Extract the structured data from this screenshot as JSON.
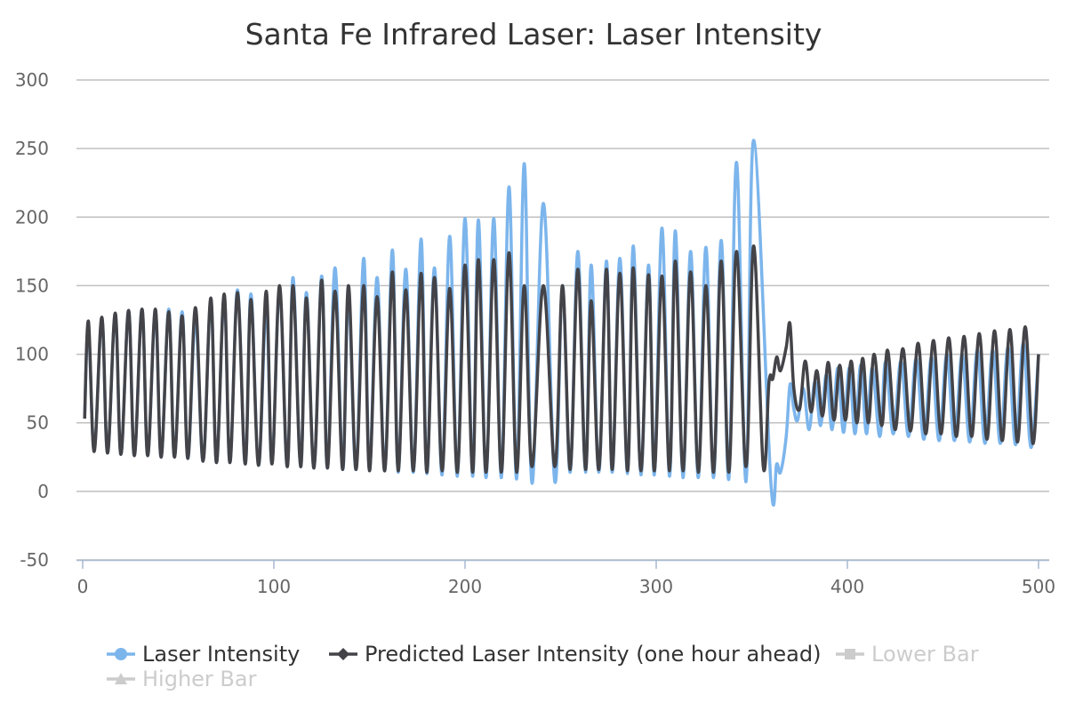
{
  "chart_data": {
    "type": "line",
    "title": "Santa Fe Infrared Laser: Laser Intensity",
    "xlabel": "",
    "ylabel": "",
    "xlim": [
      0,
      500
    ],
    "ylim": [
      -50,
      300
    ],
    "x_ticks": [
      0,
      100,
      200,
      300,
      400,
      500
    ],
    "y_ticks": [
      -50,
      0,
      50,
      100,
      150,
      200,
      250,
      300
    ],
    "grid": "horizontal",
    "legend_position": "bottom-left",
    "series": [
      {
        "name": "Laser Intensity",
        "color": "#7cb5ec",
        "marker": "circle",
        "active": true,
        "peaks": [
          [
            3,
            120
          ],
          [
            10,
            126
          ],
          [
            17,
            129
          ],
          [
            24,
            132
          ],
          [
            31,
            133
          ],
          [
            38,
            131
          ],
          [
            45,
            133
          ],
          [
            52,
            131
          ],
          [
            59,
            126
          ],
          [
            67,
            139
          ],
          [
            74,
            142
          ],
          [
            81,
            147
          ],
          [
            88,
            144
          ],
          [
            96,
            135
          ],
          [
            103,
            148
          ],
          [
            110,
            156
          ],
          [
            117,
            145
          ],
          [
            125,
            157
          ],
          [
            132,
            163
          ],
          [
            139,
            142
          ],
          [
            147,
            170
          ],
          [
            154,
            156
          ],
          [
            162,
            176
          ],
          [
            169,
            162
          ],
          [
            177,
            184
          ],
          [
            184,
            163
          ],
          [
            192,
            186
          ],
          [
            200,
            199
          ],
          [
            207,
            198
          ],
          [
            215,
            199
          ],
          [
            223,
            222
          ],
          [
            231,
            239
          ],
          [
            241,
            210
          ],
          [
            251,
            150
          ],
          [
            259,
            175
          ],
          [
            266,
            165
          ],
          [
            274,
            168
          ],
          [
            281,
            170
          ],
          [
            288,
            179
          ],
          [
            296,
            165
          ],
          [
            303,
            192
          ],
          [
            310,
            190
          ],
          [
            318,
            175
          ],
          [
            326,
            178
          ],
          [
            334,
            183
          ],
          [
            342,
            240
          ],
          [
            351,
            256
          ]
        ],
        "troughs": [
          [
            1,
            55
          ],
          [
            6,
            30
          ],
          [
            13,
            28
          ],
          [
            20,
            27
          ],
          [
            27,
            26
          ],
          [
            34,
            26
          ],
          [
            41,
            25
          ],
          [
            48,
            25
          ],
          [
            55,
            24
          ],
          [
            63,
            22
          ],
          [
            70,
            21
          ],
          [
            77,
            21
          ],
          [
            85,
            20
          ],
          [
            92,
            19
          ],
          [
            99,
            20
          ],
          [
            107,
            18
          ],
          [
            114,
            18
          ],
          [
            121,
            17
          ],
          [
            128,
            17
          ],
          [
            136,
            16
          ],
          [
            143,
            16
          ],
          [
            150,
            15
          ],
          [
            158,
            15
          ],
          [
            165,
            14
          ],
          [
            173,
            14
          ],
          [
            180,
            13
          ],
          [
            188,
            12
          ],
          [
            196,
            11
          ],
          [
            204,
            11
          ],
          [
            211,
            10
          ],
          [
            219,
            10
          ],
          [
            227,
            9
          ],
          [
            235,
            6
          ],
          [
            247,
            7
          ],
          [
            255,
            14
          ],
          [
            263,
            14
          ],
          [
            270,
            14
          ],
          [
            277,
            14
          ],
          [
            285,
            13
          ],
          [
            292,
            12
          ],
          [
            299,
            12
          ],
          [
            307,
            11
          ],
          [
            314,
            10
          ],
          [
            322,
            10
          ],
          [
            330,
            10
          ],
          [
            338,
            9
          ],
          [
            347,
            7
          ],
          [
            360,
            6
          ]
        ],
        "tail": [
          [
            360,
            6
          ],
          [
            363,
            20
          ],
          [
            365,
            14
          ],
          [
            368,
            40
          ],
          [
            370,
            78
          ],
          [
            372,
            60
          ],
          [
            374,
            52
          ],
          [
            377,
            75
          ],
          [
            380,
            45
          ],
          [
            383,
            80
          ],
          [
            386,
            48
          ],
          [
            389,
            85
          ],
          [
            392,
            45
          ],
          [
            395,
            90
          ],
          [
            398,
            43
          ],
          [
            401,
            90
          ],
          [
            404,
            42
          ],
          [
            407,
            92
          ],
          [
            410,
            42
          ],
          [
            413,
            90
          ],
          [
            417,
            40
          ],
          [
            420,
            95
          ],
          [
            424,
            42
          ],
          [
            428,
            95
          ],
          [
            432,
            40
          ],
          [
            436,
            97
          ],
          [
            440,
            38
          ],
          [
            444,
            98
          ],
          [
            448,
            37
          ],
          [
            452,
            100
          ],
          [
            456,
            37
          ],
          [
            460,
            100
          ],
          [
            464,
            36
          ],
          [
            468,
            103
          ],
          [
            472,
            35
          ],
          [
            476,
            103
          ],
          [
            480,
            35
          ],
          [
            484,
            105
          ],
          [
            488,
            34
          ],
          [
            492,
            108
          ],
          [
            496,
            32
          ],
          [
            500,
            100
          ]
        ]
      },
      {
        "name": "Predicted Laser Intensity (one hour ahead)",
        "color": "#434348",
        "marker": "diamond",
        "active": true,
        "peaks": [
          [
            3,
            124
          ],
          [
            10,
            127
          ],
          [
            17,
            130
          ],
          [
            24,
            132
          ],
          [
            31,
            133
          ],
          [
            38,
            133
          ],
          [
            45,
            131
          ],
          [
            52,
            128
          ],
          [
            59,
            134
          ],
          [
            67,
            141
          ],
          [
            74,
            144
          ],
          [
            81,
            145
          ],
          [
            88,
            140
          ],
          [
            96,
            146
          ],
          [
            103,
            150
          ],
          [
            110,
            150
          ],
          [
            117,
            141
          ],
          [
            125,
            154
          ],
          [
            132,
            146
          ],
          [
            139,
            150
          ],
          [
            147,
            150
          ],
          [
            154,
            142
          ],
          [
            162,
            160
          ],
          [
            169,
            147
          ],
          [
            177,
            159
          ],
          [
            184,
            156
          ],
          [
            192,
            148
          ],
          [
            200,
            165
          ],
          [
            207,
            169
          ],
          [
            215,
            169
          ],
          [
            223,
            174
          ],
          [
            231,
            150
          ],
          [
            241,
            150
          ],
          [
            251,
            150
          ],
          [
            259,
            162
          ],
          [
            266,
            139
          ],
          [
            274,
            162
          ],
          [
            281,
            159
          ],
          [
            288,
            163
          ],
          [
            296,
            158
          ],
          [
            303,
            157
          ],
          [
            310,
            168
          ],
          [
            318,
            160
          ],
          [
            326,
            150
          ],
          [
            334,
            168
          ],
          [
            342,
            175
          ],
          [
            351,
            179
          ]
        ],
        "troughs": [
          [
            1,
            53
          ],
          [
            6,
            29
          ],
          [
            13,
            28
          ],
          [
            20,
            27
          ],
          [
            27,
            26
          ],
          [
            34,
            26
          ],
          [
            41,
            25
          ],
          [
            48,
            25
          ],
          [
            55,
            24
          ],
          [
            63,
            22
          ],
          [
            70,
            21
          ],
          [
            77,
            21
          ],
          [
            85,
            20
          ],
          [
            92,
            19
          ],
          [
            99,
            20
          ],
          [
            107,
            18
          ],
          [
            114,
            18
          ],
          [
            121,
            17
          ],
          [
            128,
            17
          ],
          [
            136,
            16
          ],
          [
            143,
            16
          ],
          [
            150,
            15
          ],
          [
            158,
            15
          ],
          [
            165,
            15
          ],
          [
            173,
            15
          ],
          [
            180,
            14
          ],
          [
            188,
            15
          ],
          [
            196,
            14
          ],
          [
            204,
            14
          ],
          [
            211,
            14
          ],
          [
            219,
            14
          ],
          [
            227,
            14
          ],
          [
            235,
            18
          ],
          [
            247,
            18
          ],
          [
            255,
            16
          ],
          [
            263,
            16
          ],
          [
            270,
            16
          ],
          [
            277,
            16
          ],
          [
            285,
            15
          ],
          [
            292,
            15
          ],
          [
            299,
            15
          ],
          [
            307,
            15
          ],
          [
            314,
            15
          ],
          [
            322,
            14
          ],
          [
            330,
            14
          ],
          [
            338,
            14
          ],
          [
            347,
            18
          ],
          [
            356,
            18
          ]
        ],
        "tail": [
          [
            356,
            18
          ],
          [
            359,
            80
          ],
          [
            361,
            82
          ],
          [
            363,
            98
          ],
          [
            365,
            88
          ],
          [
            368,
            105
          ],
          [
            370,
            122
          ],
          [
            372,
            75
          ],
          [
            375,
            60
          ],
          [
            378,
            95
          ],
          [
            381,
            58
          ],
          [
            384,
            88
          ],
          [
            387,
            55
          ],
          [
            390,
            94
          ],
          [
            393,
            52
          ],
          [
            396,
            92
          ],
          [
            399,
            52
          ],
          [
            402,
            95
          ],
          [
            405,
            50
          ],
          [
            408,
            97
          ],
          [
            411,
            50
          ],
          [
            414,
            100
          ],
          [
            418,
            48
          ],
          [
            421,
            103
          ],
          [
            425,
            45
          ],
          [
            429,
            104
          ],
          [
            433,
            44
          ],
          [
            437,
            108
          ],
          [
            441,
            42
          ],
          [
            445,
            110
          ],
          [
            449,
            42
          ],
          [
            453,
            112
          ],
          [
            457,
            40
          ],
          [
            461,
            113
          ],
          [
            465,
            40
          ],
          [
            469,
            115
          ],
          [
            473,
            38
          ],
          [
            477,
            117
          ],
          [
            481,
            37
          ],
          [
            485,
            118
          ],
          [
            489,
            36
          ],
          [
            493,
            120
          ],
          [
            497,
            35
          ],
          [
            500,
            100
          ]
        ]
      },
      {
        "name": "Lower Bar",
        "color": "#cccccc",
        "marker": "square",
        "active": false
      },
      {
        "name": "Higher Bar",
        "color": "#cccccc",
        "marker": "triangle",
        "active": false
      }
    ]
  }
}
